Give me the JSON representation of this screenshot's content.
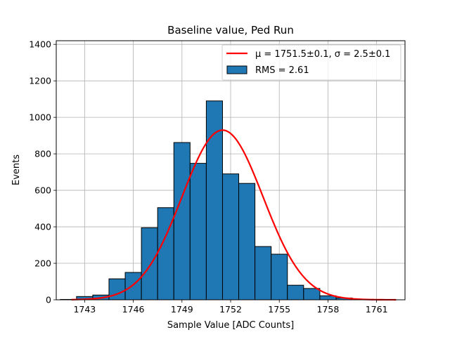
{
  "chart_data": {
    "type": "bar",
    "title": "Baseline value, Ped Run",
    "xlabel": "Sample Value [ADC Counts]",
    "ylabel": "Events",
    "xlim": [
      1741.25,
      1762.75
    ],
    "ylim": [
      0,
      1420
    ],
    "grid": true,
    "legend_position": "top-right",
    "xticks": [
      1743,
      1746,
      1749,
      1752,
      1755,
      1758,
      1761
    ],
    "yticks": [
      0,
      200,
      400,
      600,
      800,
      1000,
      1200,
      1400
    ],
    "histogram": {
      "name": "RMS = 2.61",
      "bin_width": 1,
      "bin_centers": [
        1742,
        1743,
        1744,
        1745,
        1746,
        1747,
        1748,
        1749,
        1750,
        1751,
        1752,
        1753,
        1754,
        1755,
        1756,
        1757,
        1758,
        1759,
        1760,
        1761
      ],
      "values": [
        2,
        18,
        26,
        115,
        150,
        395,
        505,
        862,
        748,
        1090,
        690,
        638,
        292,
        250,
        80,
        62,
        22,
        10,
        3,
        1
      ]
    },
    "fit": {
      "name_math": "μ = 1751.5±0.1, σ = 2.5±0.1",
      "mu": 1751.5,
      "sigma": 2.5,
      "amplitude": 930,
      "x_range": [
        1742.2,
        1762.2
      ],
      "color": "#ff0000"
    },
    "colors": {
      "bar_fill": "#1f77b4",
      "bar_edge": "#000000",
      "grid": "#b0b0b0"
    }
  }
}
